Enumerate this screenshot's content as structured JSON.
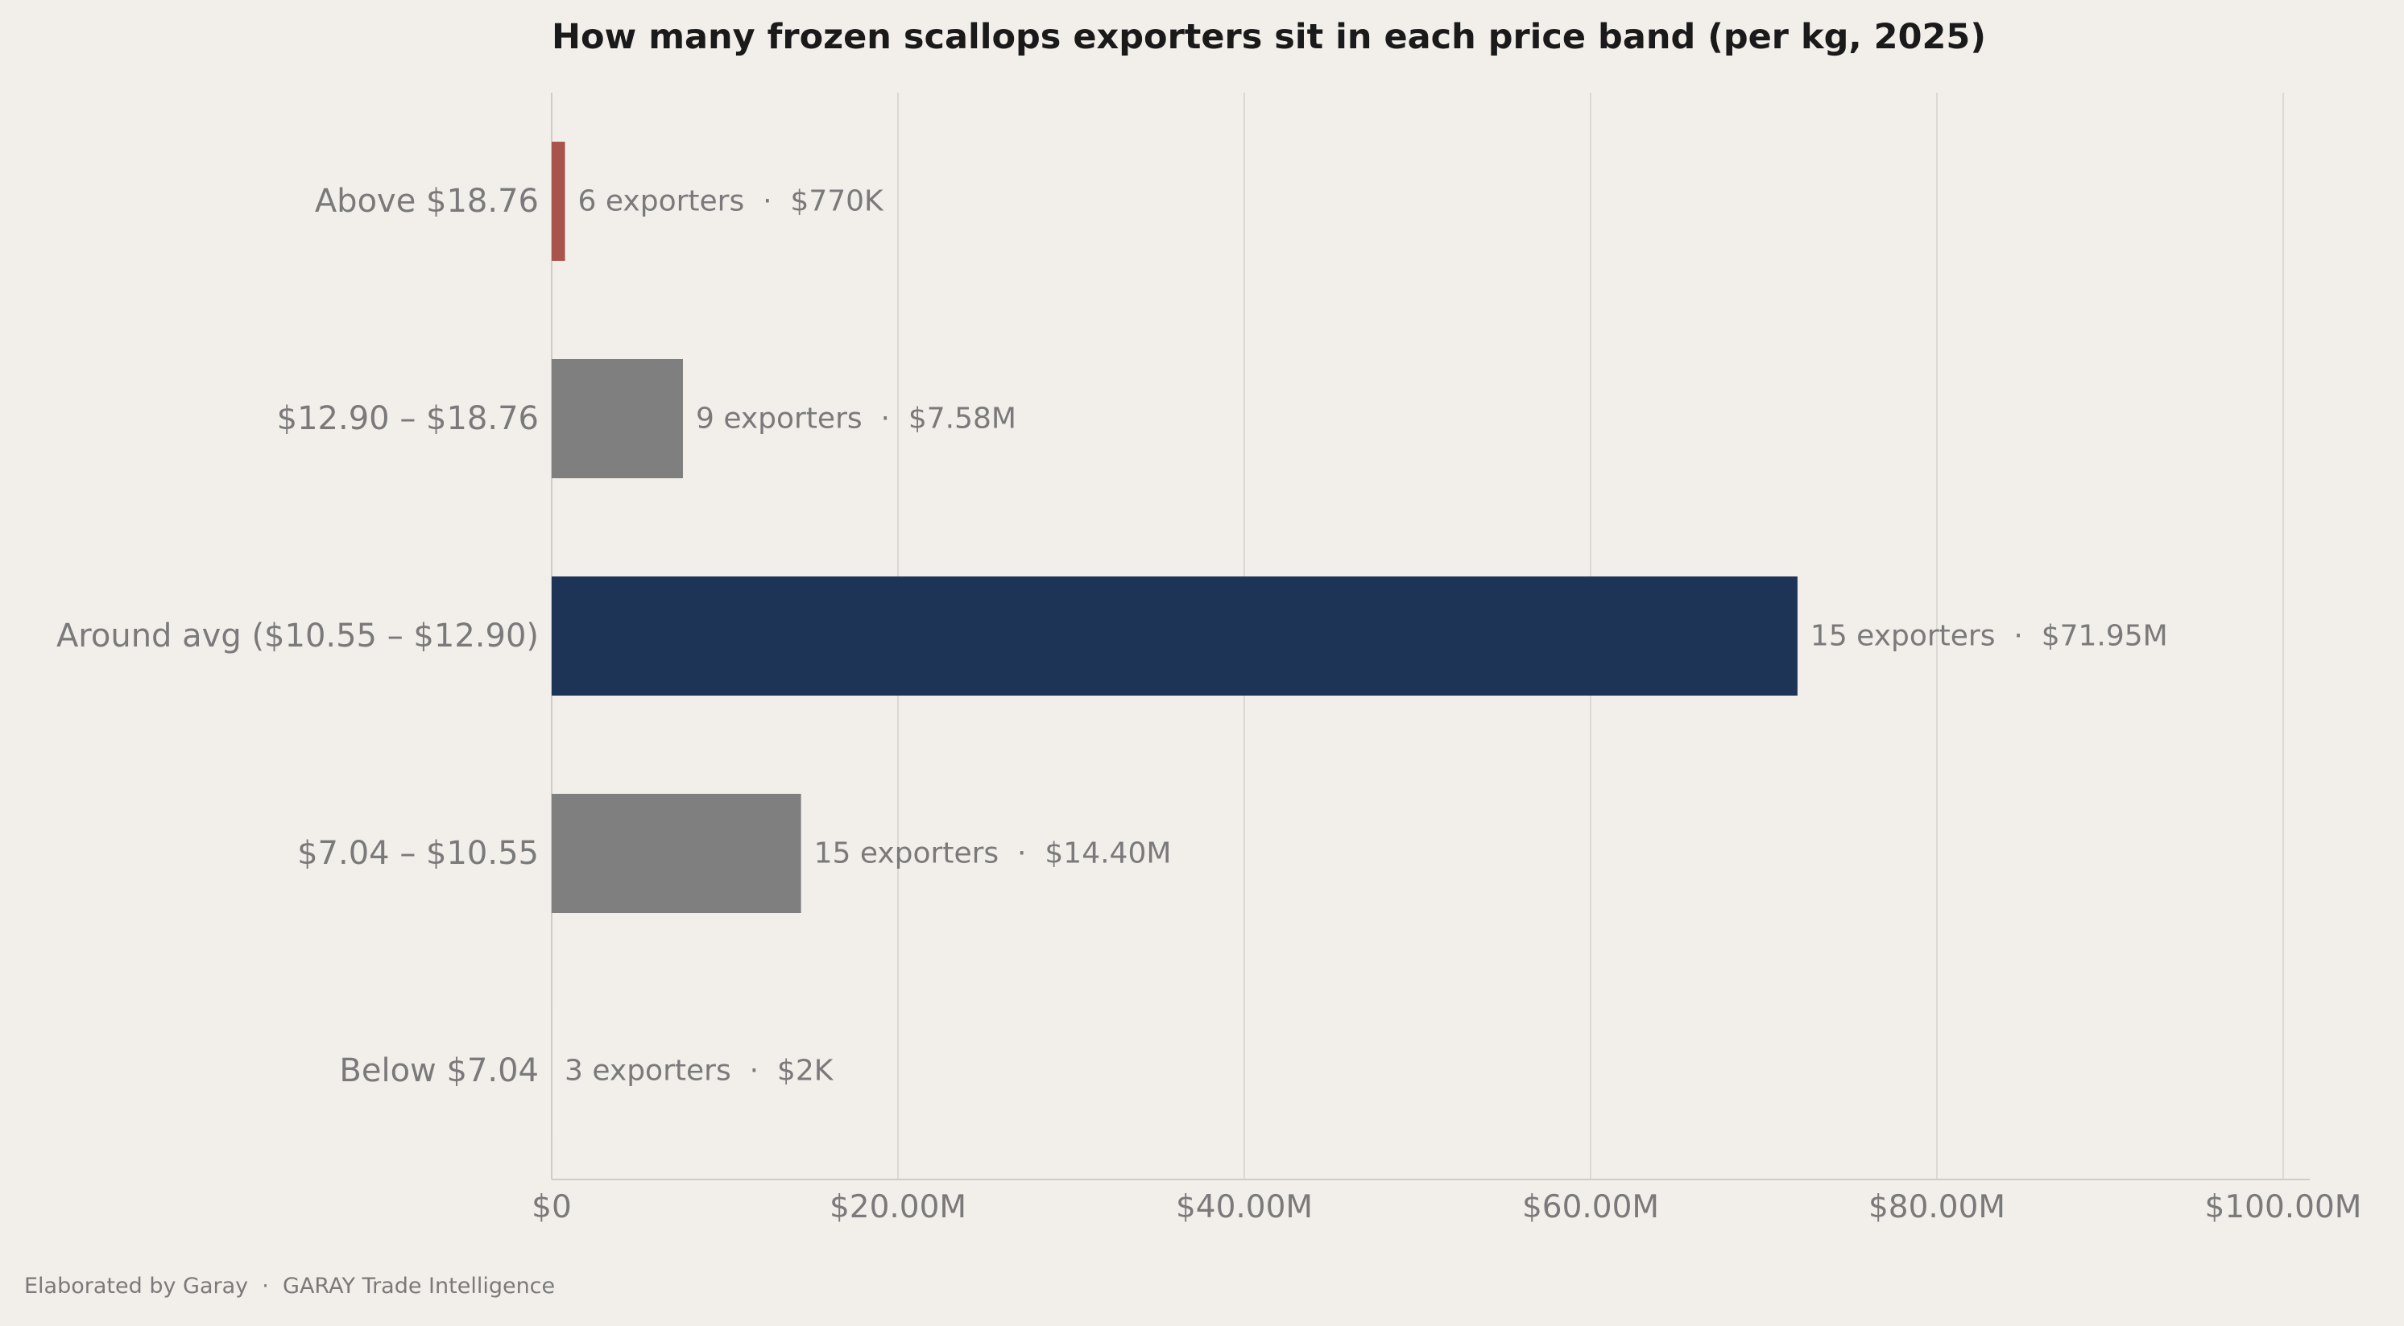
{
  "chart_data": {
    "type": "bar",
    "orientation": "horizontal",
    "title": "How many frozen scallops exporters sit in each price band (per kg, 2025)",
    "xlabel": "",
    "ylabel": "",
    "xlim": [
      0,
      100000000
    ],
    "x_ticks": [
      0,
      20000000,
      40000000,
      60000000,
      80000000,
      100000000
    ],
    "x_tick_labels": [
      "$0",
      "$20.00M",
      "$40.00M",
      "$60.00M",
      "$80.00M",
      "$100.00M"
    ],
    "grid": "vertical",
    "categories": [
      "Above $18.76",
      "$12.90 – $18.76",
      "Around avg ($10.55 – $12.90)",
      "$7.04 – $10.55",
      "Below $7.04"
    ],
    "values": [
      770000,
      7580000,
      71950000,
      14400000,
      2000
    ],
    "exporters": [
      6,
      9,
      15,
      15,
      3
    ],
    "data_labels": [
      "6 exporters  ·  $770K",
      "9 exporters  ·  $7.58M",
      "15 exporters  ·  $71.95M",
      "15 exporters  ·  $14.40M",
      "3 exporters  ·  $2K"
    ],
    "colors": [
      "#a9544a",
      "#7f7f7f",
      "#1e3457",
      "#7f7f7f",
      "#7f7f7f"
    ]
  },
  "footer": "Elaborated by Garay  ·  GARAY Trade Intelligence",
  "style": {
    "background": "#f2eeea",
    "grid_color": "#dcd8d4",
    "axis_color": "#cfcbc7",
    "label_color": "#7a7a7a",
    "title_color": "#1a1a1a"
  }
}
